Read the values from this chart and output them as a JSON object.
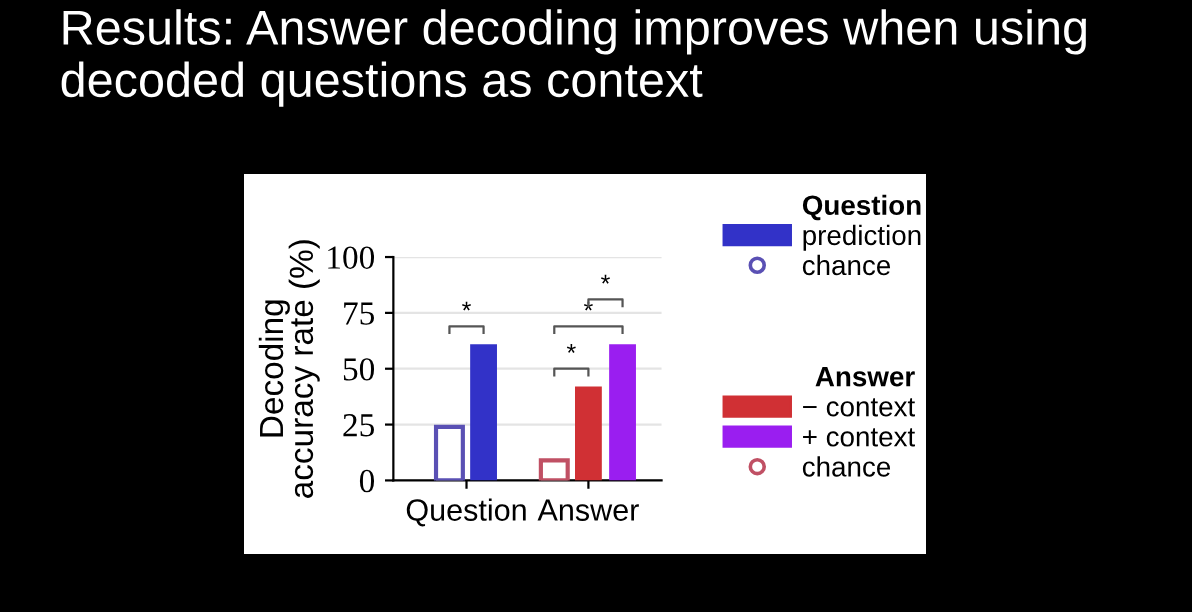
{
  "chart_data": {
    "type": "bar",
    "title": "Results: Answer decoding improves when using decoded questions as context",
    "ylabel": "Decoding\naccuracy rate (%)",
    "categories": [
      "Question",
      "Answer"
    ],
    "series": [
      {
        "name": "prediction",
        "color": "#3232c8",
        "values": [
          61,
          null
        ]
      },
      {
        "name": "chance",
        "color": "#5a50b4",
        "marker": "circle",
        "values": [
          24,
          null
        ]
      },
      {
        "name": "− context",
        "color": "#d03034",
        "values": [
          null,
          42
        ]
      },
      {
        "name": "+ context",
        "color": "#9a1ef0",
        "values": [
          null,
          61
        ]
      },
      {
        "name": "chance",
        "color": "#c05064",
        "marker": "circle",
        "values": [
          null,
          9
        ]
      }
    ],
    "legend_title": "Question",
    "annotations": [
      "Answer",
      "*",
      "*",
      "*",
      "*"
    ],
    "ylim": [
      0,
      100
    ],
    "yticks": [
      0,
      25,
      50,
      75,
      100
    ],
    "grid": "y",
    "legend": "right"
  }
}
